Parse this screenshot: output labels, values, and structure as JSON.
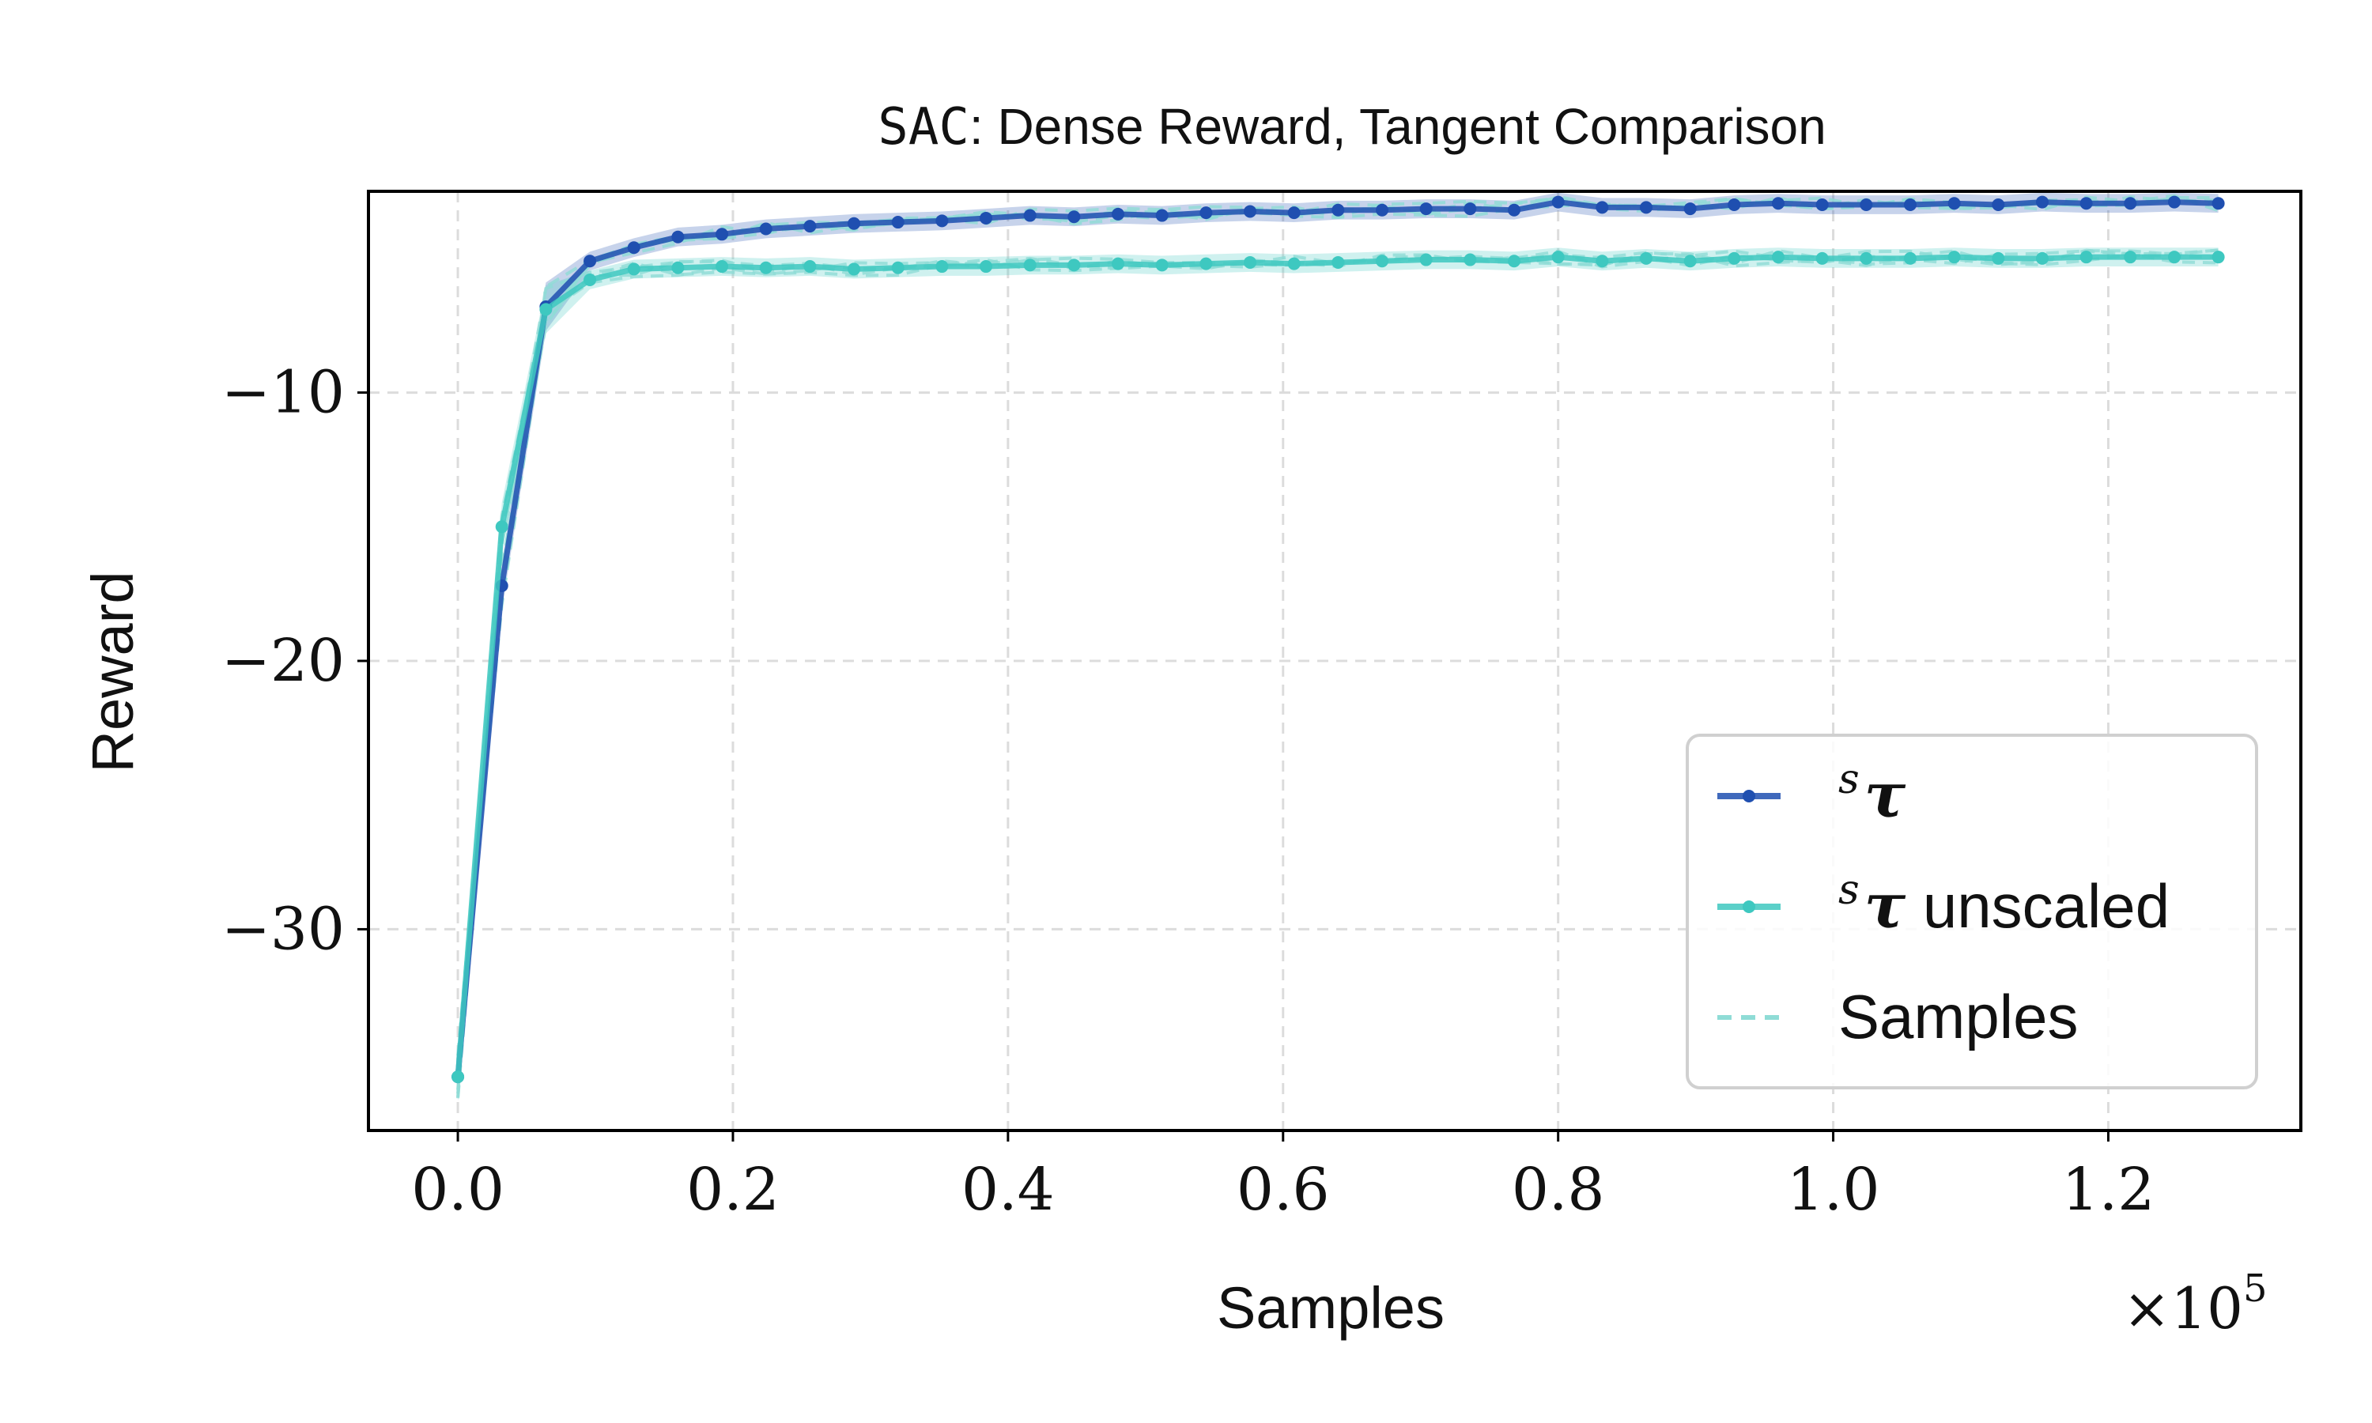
{
  "chart_data": {
    "type": "line",
    "title_prefix": "SAC",
    "title_rest": ": Dense Reward, Tangent Comparison",
    "xlabel": "Samples",
    "ylabel": "Reward",
    "x_offset_base": "×10",
    "x_offset_exp": "5",
    "xlim": [
      -0.065,
      1.34
    ],
    "ylim": [
      -37.5,
      -2.5
    ],
    "x_ticks": [
      0.0,
      0.2,
      0.4,
      0.6,
      0.8,
      1.0,
      1.2
    ],
    "x_tick_labels": [
      "0.0",
      "0.2",
      "0.4",
      "0.6",
      "0.8",
      "1.0",
      "1.2"
    ],
    "y_ticks": [
      -10,
      -20,
      -30
    ],
    "y_tick_labels": [
      "−10",
      "−20",
      "−30"
    ],
    "grid": true,
    "legend_position": "lower-right",
    "colors": {
      "tau": "#1f4fb0",
      "unscaled": "#3ec8c0",
      "samples": "#8fdcd6"
    },
    "x": [
      0.0,
      0.032,
      0.064,
      0.096,
      0.128,
      0.16,
      0.192,
      0.224,
      0.256,
      0.288,
      0.32,
      0.352,
      0.384,
      0.416,
      0.448,
      0.48,
      0.512,
      0.544,
      0.576,
      0.608,
      0.64,
      0.672,
      0.704,
      0.736,
      0.768,
      0.8,
      0.832,
      0.864,
      0.896,
      0.928,
      0.96,
      0.992,
      1.024,
      1.056,
      1.088,
      1.12,
      1.152,
      1.184,
      1.216,
      1.248,
      1.28
    ],
    "series": [
      {
        "name_sup": "s",
        "name_main": "τ",
        "name_suffix": "",
        "color_key": "tau",
        "values": [
          -35.5,
          -17.2,
          -6.8,
          -5.1,
          -4.6,
          -4.2,
          -4.1,
          -3.9,
          -3.8,
          -3.7,
          -3.65,
          -3.6,
          -3.5,
          -3.4,
          -3.45,
          -3.35,
          -3.4,
          -3.3,
          -3.25,
          -3.3,
          -3.2,
          -3.2,
          -3.15,
          -3.15,
          -3.2,
          -2.9,
          -3.1,
          -3.1,
          -3.15,
          -3.0,
          -2.95,
          -3.0,
          -3.0,
          -3.0,
          -2.95,
          -3.0,
          -2.9,
          -2.95,
          -2.95,
          -2.9,
          -2.95
        ]
      },
      {
        "name_sup": "s",
        "name_main": "τ",
        "name_suffix": " unscaled",
        "color_key": "unscaled",
        "values": [
          -35.5,
          -15.0,
          -6.9,
          -5.8,
          -5.4,
          -5.35,
          -5.3,
          -5.35,
          -5.3,
          -5.4,
          -5.35,
          -5.3,
          -5.3,
          -5.25,
          -5.25,
          -5.2,
          -5.25,
          -5.2,
          -5.15,
          -5.2,
          -5.15,
          -5.1,
          -5.05,
          -5.05,
          -5.1,
          -4.95,
          -5.1,
          -5.0,
          -5.1,
          -5.0,
          -4.95,
          -5.0,
          -5.0,
          -5.0,
          -4.95,
          -5.0,
          -5.0,
          -4.95,
          -4.95,
          -4.95,
          -4.95
        ]
      }
    ],
    "samples_label": "Samples"
  }
}
